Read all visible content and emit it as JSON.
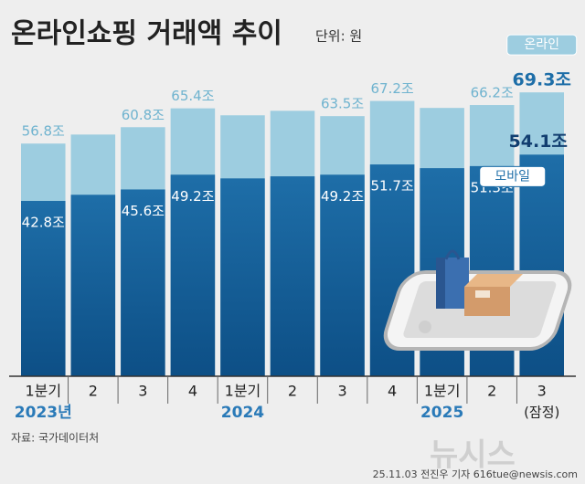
{
  "chart_data": {
    "type": "overlap-bar",
    "title": "온라인쇼핑 거래액 추이",
    "unit": "단위: 원",
    "categories": [
      "1분기",
      "2",
      "3",
      "4",
      "1분기",
      "2",
      "3",
      "4",
      "1분기",
      "2",
      "3"
    ],
    "x_groups": [
      {
        "label": "2023년",
        "categories": [
          "1분기",
          "2",
          "3",
          "4"
        ]
      },
      {
        "label": "2024",
        "categories": [
          "1분기",
          "2",
          "3",
          "4"
        ]
      },
      {
        "label": "2025",
        "categories": [
          "1분기",
          "2",
          "3"
        ]
      }
    ],
    "provisional_note": "(잠정)",
    "series": [
      {
        "name": "온라인",
        "color": "#9dcde0",
        "values": [
          56.8,
          59.0,
          60.8,
          65.4,
          63.7,
          64.8,
          63.5,
          67.2,
          65.5,
          66.2,
          69.3
        ],
        "value_labels": [
          "56.8조",
          null,
          "60.8조",
          "65.4조",
          null,
          null,
          "63.5조",
          "67.2조",
          null,
          "66.2조",
          "69.3조"
        ]
      },
      {
        "name": "모바일",
        "color": "#1e6ea8",
        "values": [
          42.8,
          44.3,
          45.6,
          49.2,
          48.3,
          48.8,
          49.2,
          51.7,
          50.8,
          51.3,
          54.1
        ],
        "value_labels": [
          "42.8조",
          null,
          "45.6조",
          "49.2조",
          null,
          null,
          "49.2조",
          "51.7조",
          null,
          "51.3조",
          "54.1조"
        ]
      }
    ],
    "ylim": [
      0,
      70
    ],
    "source": "자료: 국가데이터처",
    "credit": "25.11.03 전진우 기자 616tue@newsis.com",
    "watermark": "뉴시스"
  }
}
